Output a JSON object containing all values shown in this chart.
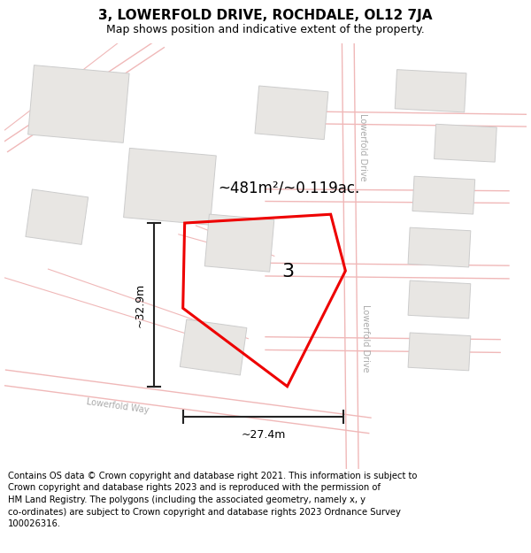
{
  "title": "3, LOWERFOLD DRIVE, ROCHDALE, OL12 7JA",
  "subtitle": "Map shows position and indicative extent of the property.",
  "footer": "Contains OS data © Crown copyright and database right 2021. This information is subject to Crown copyright and database rights 2023 and is reproduced with the permission of HM Land Registry. The polygons (including the associated geometry, namely x, y co-ordinates) are subject to Crown copyright and database rights 2023 Ordnance Survey 100026316.",
  "map_bg": "#f7f6f4",
  "title_area_bg": "#ffffff",
  "footer_area_bg": "#ffffff",
  "road_line_color": "#f0b8b8",
  "building_color": "#e8e6e3",
  "building_edge": "#cccccc",
  "plot_color": "#ee0000",
  "dim_color": "#222222",
  "area_text": "~481m²/~0.119ac.",
  "plot_label": "3",
  "dim_width": "~27.4m",
  "dim_height": "~32.9m",
  "road_label_drive_upper": "Lowerfold Drive",
  "road_label_drive_lower": "Lowerfold Drive",
  "road_label_way": "Lowerfold Way",
  "title_fontsize": 11,
  "subtitle_fontsize": 9,
  "footer_fontsize": 7.2,
  "area_fontsize": 12,
  "label_fontsize": 16,
  "dim_fontsize": 9,
  "road_label_fontsize": 7
}
